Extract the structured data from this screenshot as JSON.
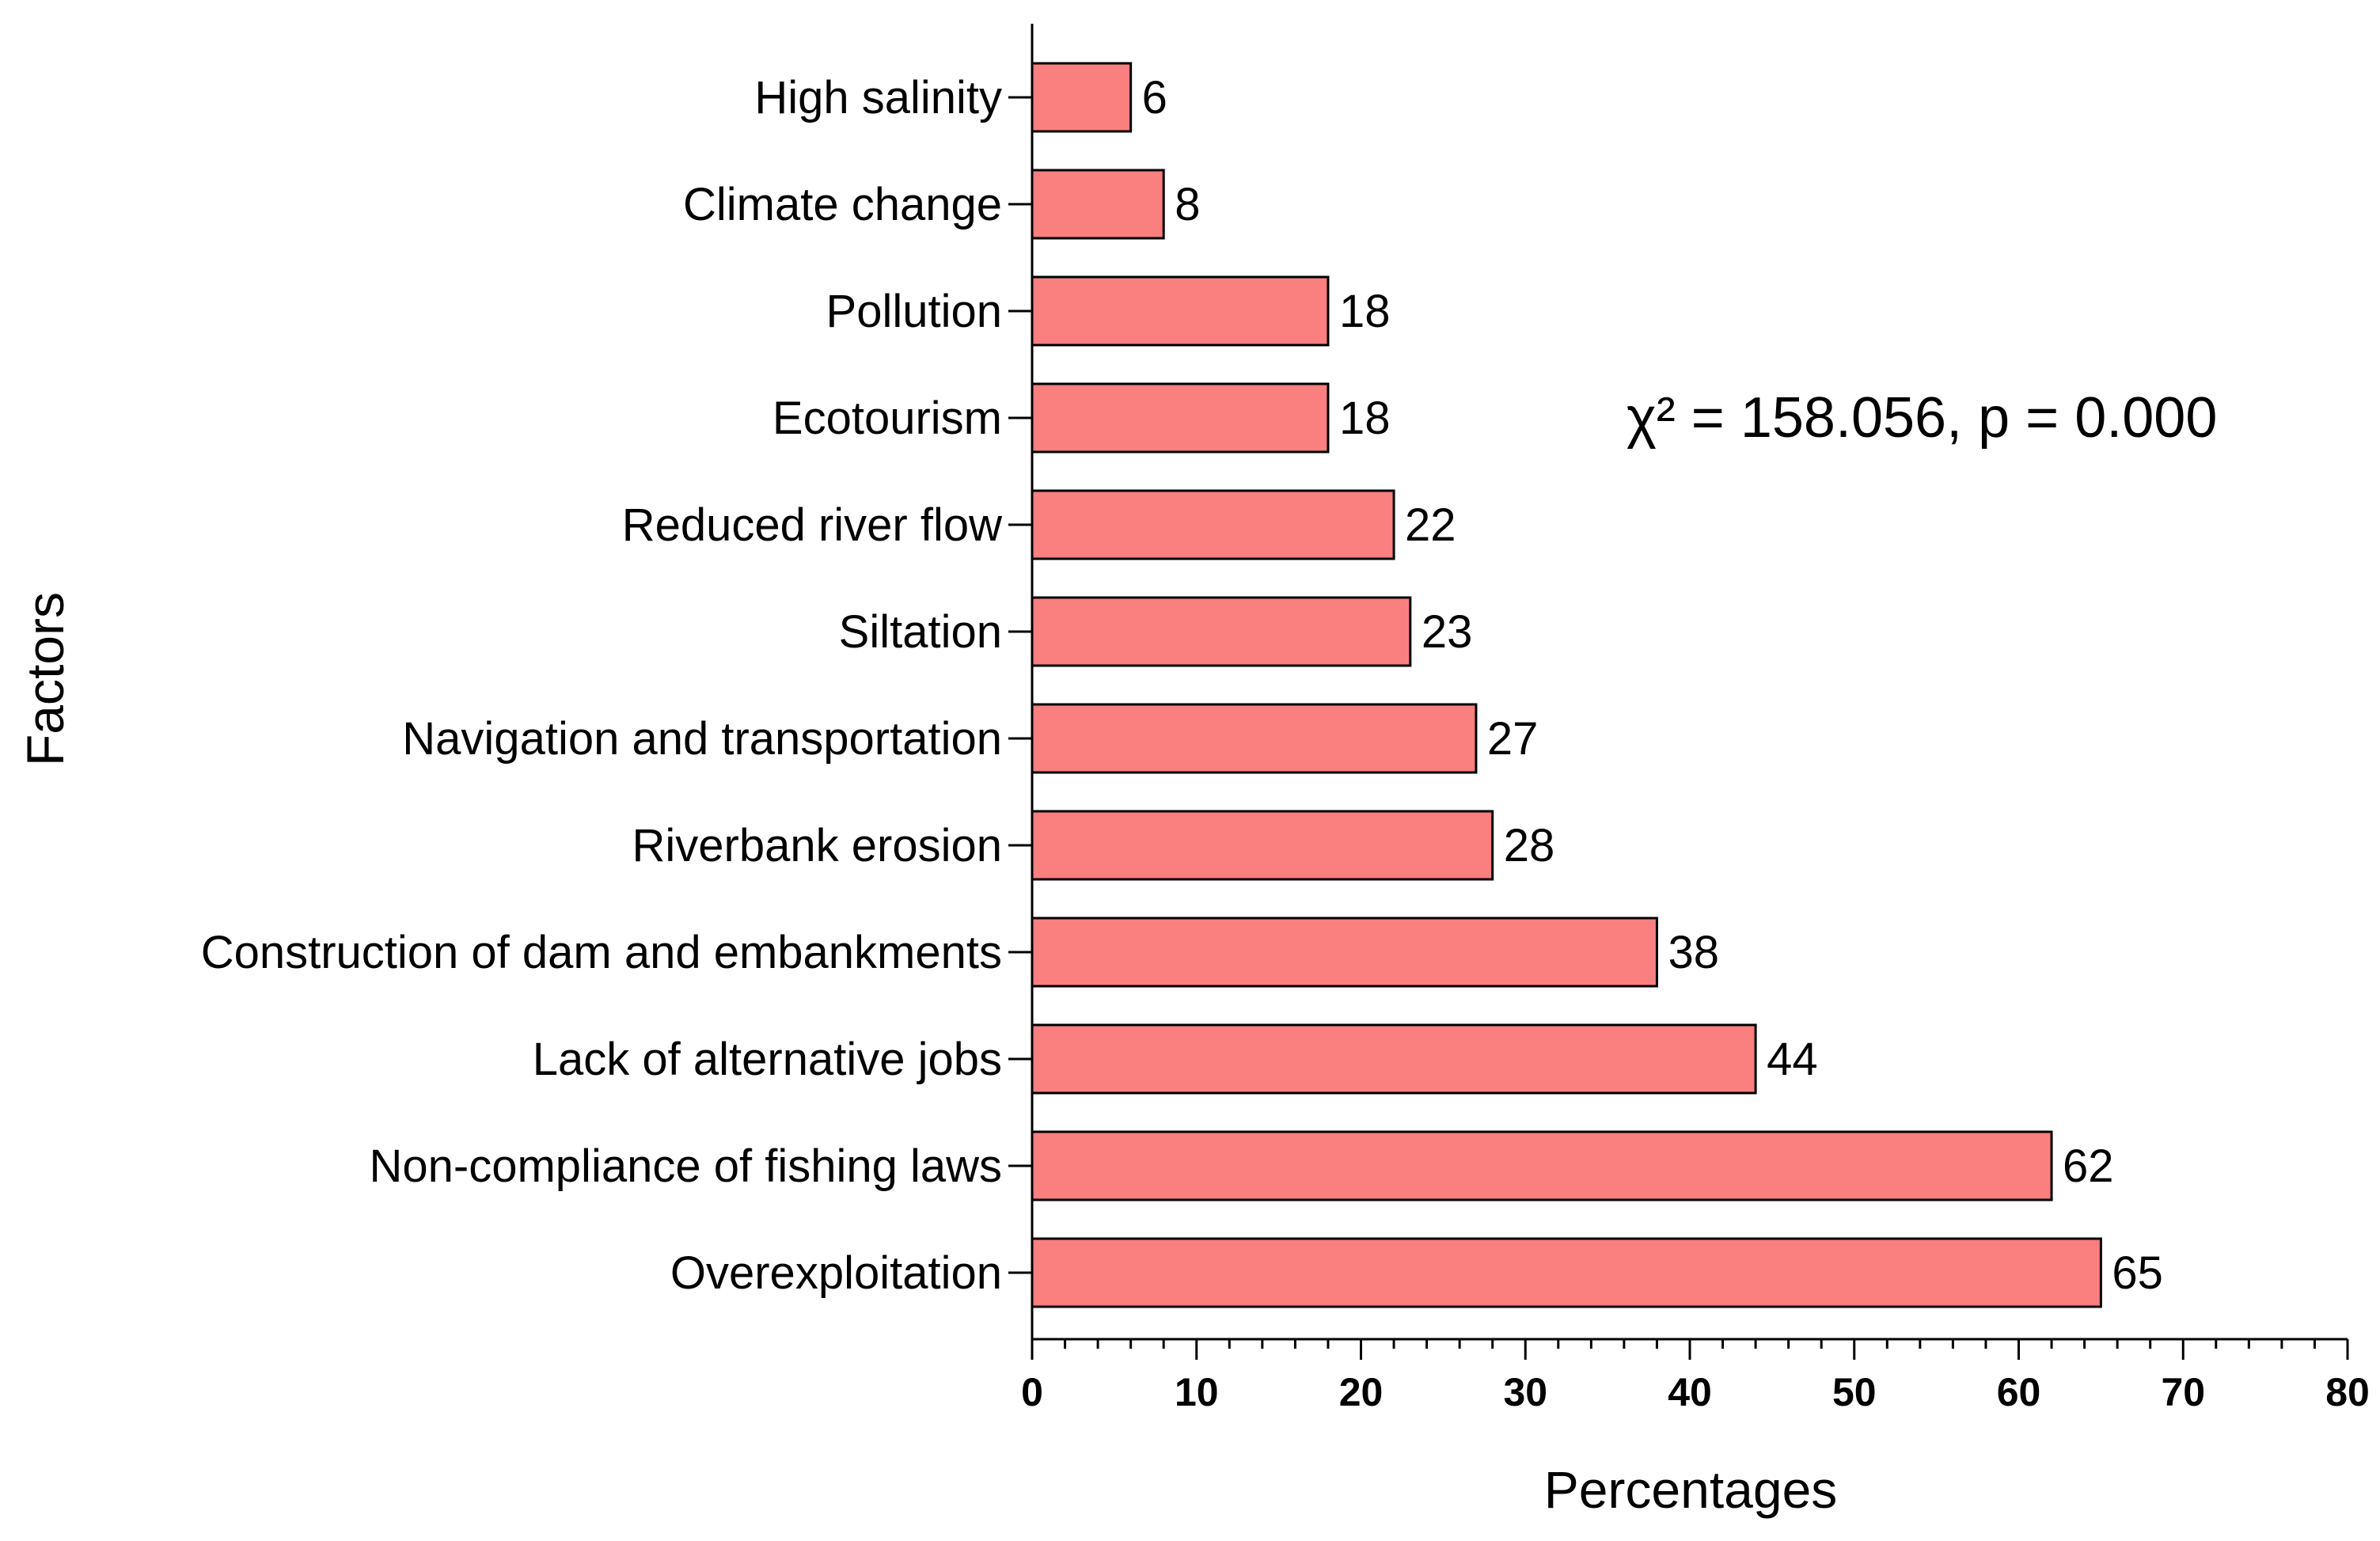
{
  "chart_data": {
    "type": "bar",
    "orientation": "horizontal",
    "categories": [
      "High salinity",
      "Climate change",
      "Pollution",
      "Ecotourism",
      "Reduced river flow",
      "Siltation",
      "Navigation and transportation",
      "Riverbank erosion",
      "Construction of dam and embankments",
      "Lack of alternative jobs",
      "Non-compliance of fishing laws",
      "Overexploitation"
    ],
    "values": [
      6,
      8,
      18,
      18,
      22,
      23,
      27,
      28,
      38,
      44,
      62,
      65
    ],
    "value_labels": [
      "6",
      "8",
      "18",
      "18",
      "22",
      "23",
      "27",
      "28",
      "38",
      "44",
      "62",
      "65"
    ],
    "xlabel": "Percentages",
    "ylabel": "Factors",
    "xlim": [
      0,
      80
    ],
    "xticks": [
      0,
      10,
      20,
      30,
      40,
      50,
      60,
      70,
      80
    ],
    "xtick_labels": [
      "0",
      "10",
      "20",
      "30",
      "40",
      "50",
      "60",
      "70",
      "80"
    ],
    "annotation": "χ² = 158.056, p = 0.000",
    "grid": false,
    "bar_color": "#fa7f7f",
    "bar_edge_color": "#000000"
  }
}
